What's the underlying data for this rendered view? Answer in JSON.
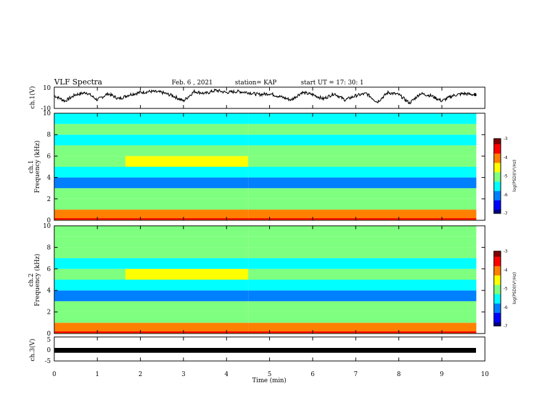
{
  "header": {
    "title": "VLF Spectra",
    "date": "Feb. 6  , 2021",
    "station": "station= KAP",
    "start_ut": "start  UT  =   17: 30: 1"
  },
  "colors": {
    "waveform": "#000000",
    "ch3_band": "#000000",
    "colormap": [
      "#00007f",
      "#0000ff",
      "#007fff",
      "#00ffff",
      "#7fff7f",
      "#ffff00",
      "#ff7f00",
      "#ff0000",
      "#7f0000"
    ]
  },
  "chart_data": [
    {
      "type": "line",
      "panel": "ch1-waveform",
      "ylabel": "ch.1(V)",
      "ylim": [
        -10,
        10
      ],
      "yticks": [
        "10",
        "-10"
      ],
      "xlim": [
        0,
        10
      ],
      "series": [
        {
          "x": [
            0,
            0.25,
            0.5,
            0.75,
            1.0,
            1.25,
            1.5,
            1.75,
            2.0,
            2.25,
            2.5,
            2.75,
            3.0,
            3.25,
            3.5,
            3.75,
            4.0,
            4.25,
            4.5,
            4.75,
            5.0,
            5.25,
            5.5,
            5.75,
            6.0,
            6.25,
            6.5,
            6.75,
            7.0,
            7.25,
            7.5,
            7.75,
            8.0,
            8.25,
            8.5,
            8.75,
            9.0,
            9.25,
            9.5,
            9.75,
            9.8
          ],
          "values": [
            2,
            -3,
            3,
            5,
            -2,
            4,
            -1,
            3,
            5,
            6,
            5,
            2,
            -3,
            6,
            4,
            7,
            5,
            6,
            5,
            3,
            4,
            1,
            -2,
            5,
            3,
            -1,
            4,
            -2,
            2,
            4,
            -4,
            5,
            3,
            -5,
            4,
            2,
            -3,
            2,
            4,
            3,
            3
          ]
        }
      ]
    },
    {
      "type": "heatmap",
      "panel": "ch1-spectrogram",
      "ylabel": "ch.1\nFrequency (kHz)",
      "xlim": [
        0,
        10
      ],
      "ylim": [
        0,
        10
      ],
      "yticks": [
        "0",
        "2",
        "4",
        "6",
        "8",
        "10"
      ],
      "colorbar": {
        "label": "log(PSD)(V²/Hz)",
        "range": [
          -7,
          -3
        ],
        "ticks": [
          "-3",
          "-4",
          "-5",
          "-6",
          "-7"
        ]
      },
      "freq_bands_khz": [
        0,
        1,
        2,
        3,
        4,
        5,
        6,
        7,
        8,
        9,
        10
      ],
      "time_segments_min": [
        [
          0,
          1.65
        ],
        [
          1.65,
          4.5
        ],
        [
          4.5,
          9.8
        ]
      ],
      "log_psd": [
        [
          -4.2,
          -4.8,
          -5.0,
          -5.8,
          -5.6,
          -5.0,
          -5.0,
          -5.6,
          -5.0,
          -5.4
        ],
        [
          -4.2,
          -4.8,
          -5.0,
          -5.8,
          -5.4,
          -4.6,
          -5.0,
          -5.6,
          -5.0,
          -5.4
        ],
        [
          -4.2,
          -4.8,
          -5.0,
          -5.8,
          -5.6,
          -5.2,
          -5.2,
          -5.6,
          -5.0,
          -5.4
        ]
      ]
    },
    {
      "type": "heatmap",
      "panel": "ch2-spectrogram",
      "ylabel": "ch.2\nFrequency (kHz)",
      "xlim": [
        0,
        10
      ],
      "ylim": [
        0,
        10
      ],
      "yticks": [
        "0",
        "2",
        "4",
        "6",
        "8",
        "10"
      ],
      "colorbar": {
        "label": "log(PSD)(V²/Hz)",
        "range": [
          -7,
          -3
        ],
        "ticks": [
          "-3",
          "-4",
          "-5",
          "-6",
          "-7"
        ]
      },
      "freq_bands_khz": [
        0,
        1,
        2,
        3,
        4,
        5,
        6,
        7,
        8,
        9,
        10
      ],
      "time_segments_min": [
        [
          0,
          1.65
        ],
        [
          1.65,
          4.5
        ],
        [
          4.5,
          9.8
        ]
      ],
      "log_psd": [
        [
          -4.0,
          -4.8,
          -5.2,
          -5.8,
          -5.6,
          -5.0,
          -5.4,
          -5.0,
          -5.0,
          -5.2
        ],
        [
          -4.0,
          -4.8,
          -5.2,
          -5.8,
          -5.4,
          -4.3,
          -5.4,
          -5.0,
          -5.0,
          -5.2
        ],
        [
          -4.0,
          -4.8,
          -5.2,
          -5.8,
          -5.6,
          -5.2,
          -5.4,
          -5.0,
          -5.0,
          -5.2
        ]
      ]
    },
    {
      "type": "line",
      "panel": "ch3-waveform",
      "ylabel": "ch.3(V)",
      "ylim": [
        -5,
        5
      ],
      "yticks": [
        "5",
        "0",
        "-5"
      ],
      "xlim": [
        0,
        10
      ],
      "series": [
        {
          "x": [
            0,
            9.8
          ],
          "values": [
            0,
            0
          ]
        }
      ]
    }
  ],
  "x_axis": {
    "label": "Time  (min)",
    "ticks": [
      "0",
      "1",
      "2",
      "3",
      "4",
      "5",
      "6",
      "7",
      "8",
      "9",
      "10"
    ]
  }
}
